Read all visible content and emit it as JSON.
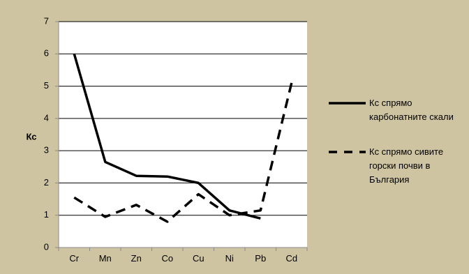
{
  "chart_data": {
    "type": "line",
    "title": "",
    "xlabel": "",
    "ylabel": "Кс",
    "categories": [
      "Cr",
      "Mn",
      "Zn",
      "Co",
      "Cu",
      "Ni",
      "Pb",
      "Cd"
    ],
    "ylim": [
      0,
      7
    ],
    "yticks": [
      "0",
      "1",
      "2",
      "3",
      "4",
      "5",
      "6",
      "7"
    ],
    "grid": "horizontal",
    "legend_position": "right",
    "background_color": "#cfc4a1",
    "plot_background_color": "#ffffff",
    "series": [
      {
        "name": "Кс спрямо карбонатните скали",
        "name_lines": [
          "Кс спрямо",
          "карбонатните скали"
        ],
        "style": "solid",
        "color": "#000000",
        "values": [
          6.0,
          2.65,
          2.22,
          2.2,
          2.0,
          1.15,
          0.9,
          null
        ]
      },
      {
        "name": "Кс спрямо сивите горски почви в България",
        "name_lines": [
          "Кс спрямо сивите",
          "горски почви в",
          "България"
        ],
        "style": "dashed",
        "color": "#000000",
        "values": [
          1.55,
          0.95,
          1.32,
          0.8,
          1.65,
          1.0,
          1.15,
          5.1
        ]
      }
    ]
  }
}
